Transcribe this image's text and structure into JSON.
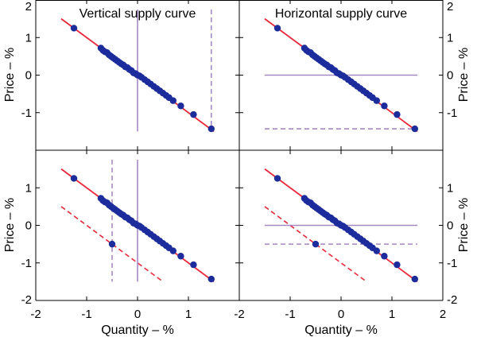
{
  "colors": {
    "fit_line": "#e8283a",
    "points": "#1c2c9c",
    "curve": "#a688c4",
    "frame": "#000000"
  },
  "chart_data": {
    "type": "scatter",
    "xlim": [
      -2,
      2
    ],
    "ylim": [
      -2,
      2
    ],
    "xticks": [
      "-2",
      "-1",
      "0",
      "1",
      "2"
    ],
    "yticks": [
      "2",
      "1",
      "0",
      "-1",
      "-2"
    ],
    "xlabel": "Quantity – %",
    "ylabel": "Price – %",
    "regression_line": {
      "slope": -1,
      "x_range": [
        -1.5,
        1.5
      ]
    },
    "points": [
      [
        -1.25,
        1.25
      ],
      [
        -0.72,
        0.72
      ],
      [
        -0.68,
        0.66
      ],
      [
        -0.64,
        0.62
      ],
      [
        -0.6,
        0.6
      ],
      [
        -0.56,
        0.54
      ],
      [
        -0.52,
        0.5
      ],
      [
        -0.48,
        0.46
      ],
      [
        -0.44,
        0.42
      ],
      [
        -0.4,
        0.38
      ],
      [
        -0.36,
        0.34
      ],
      [
        -0.32,
        0.3
      ],
      [
        -0.28,
        0.27
      ],
      [
        -0.24,
        0.22
      ],
      [
        -0.2,
        0.2
      ],
      [
        -0.16,
        0.15
      ],
      [
        -0.12,
        0.12
      ],
      [
        -0.08,
        0.06
      ],
      [
        -0.04,
        0.04
      ],
      [
        0.0,
        0.0
      ],
      [
        0.04,
        -0.02
      ],
      [
        0.08,
        -0.06
      ],
      [
        0.14,
        -0.12
      ],
      [
        0.2,
        -0.18
      ],
      [
        0.26,
        -0.24
      ],
      [
        0.32,
        -0.3
      ],
      [
        0.38,
        -0.36
      ],
      [
        0.44,
        -0.42
      ],
      [
        0.5,
        -0.48
      ],
      [
        0.56,
        -0.54
      ],
      [
        0.62,
        -0.6
      ],
      [
        0.7,
        -0.68
      ],
      [
        0.85,
        -0.82
      ],
      [
        1.1,
        -1.05
      ],
      [
        1.45,
        -1.43
      ]
    ],
    "panels": [
      {
        "title": "Vertical supply curve",
        "supply_solid": {
          "orientation": "vertical",
          "value": 0
        },
        "supply_dashed": {
          "orientation": "vertical",
          "value": 1.45
        },
        "shifted_demand": null,
        "shifted_point": null
      },
      {
        "title": "Horizontal supply curve",
        "supply_solid": {
          "orientation": "horizontal",
          "value": 0
        },
        "supply_dashed": {
          "orientation": "horizontal",
          "value": -1.43
        },
        "shifted_demand": null,
        "shifted_point": null
      },
      {
        "title": "",
        "supply_solid": {
          "orientation": "vertical",
          "value": 0
        },
        "supply_dashed": {
          "orientation": "vertical",
          "value": -0.5
        },
        "shifted_demand": {
          "intercept": -1.0,
          "x_range": [
            -1.5,
            0.5
          ]
        },
        "shifted_point": [
          -0.5,
          -0.5
        ]
      },
      {
        "title": "",
        "supply_solid": {
          "orientation": "horizontal",
          "value": 0
        },
        "supply_dashed": {
          "orientation": "horizontal",
          "value": -0.5
        },
        "shifted_demand": {
          "intercept": -1.0,
          "x_range": [
            -1.5,
            0.5
          ]
        },
        "shifted_point": [
          -0.5,
          -0.5
        ]
      }
    ]
  }
}
